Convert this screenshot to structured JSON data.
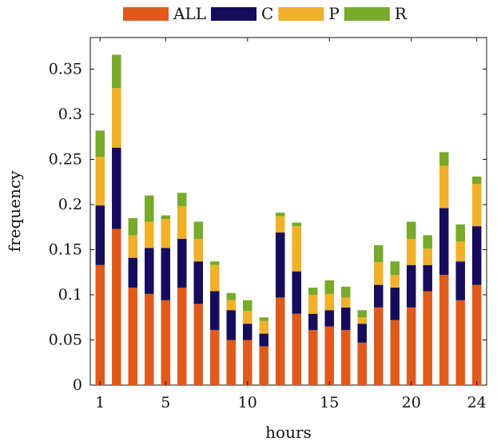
{
  "chart_data": {
    "type": "bar",
    "stacked": true,
    "xlabel": "hours",
    "ylabel": "frequency",
    "ylim": [
      0,
      0.385
    ],
    "xlim": [
      0.4,
      24.6
    ],
    "x": [
      1,
      2,
      3,
      4,
      5,
      6,
      7,
      8,
      9,
      10,
      11,
      12,
      13,
      14,
      15,
      16,
      17,
      18,
      19,
      20,
      21,
      22,
      23,
      24
    ],
    "xticks": [
      1,
      5,
      10,
      15,
      20,
      24
    ],
    "yticks": [
      0,
      0.05,
      0.1,
      0.15,
      0.2,
      0.25,
      0.3,
      0.35
    ],
    "ytick_labels": [
      "0",
      "0.05",
      "0.1",
      "0.15",
      "0.2",
      "0.25",
      "0.3",
      "0.35"
    ],
    "legend_position": "top",
    "series": [
      {
        "name": "ALL",
        "color": "#e05a1b",
        "values": [
          0.133,
          0.173,
          0.108,
          0.101,
          0.094,
          0.108,
          0.09,
          0.061,
          0.05,
          0.05,
          0.043,
          0.097,
          0.079,
          0.061,
          0.065,
          0.061,
          0.047,
          0.086,
          0.072,
          0.086,
          0.104,
          0.122,
          0.094,
          0.111
        ]
      },
      {
        "name": "C",
        "color": "#150d5c",
        "values": [
          0.066,
          0.09,
          0.033,
          0.051,
          0.058,
          0.054,
          0.047,
          0.043,
          0.033,
          0.018,
          0.014,
          0.072,
          0.047,
          0.018,
          0.018,
          0.025,
          0.021,
          0.025,
          0.036,
          0.047,
          0.029,
          0.074,
          0.043,
          0.065
        ]
      },
      {
        "name": "P",
        "color": "#f0b02a",
        "values": [
          0.054,
          0.066,
          0.025,
          0.029,
          0.032,
          0.036,
          0.025,
          0.029,
          0.011,
          0.014,
          0.014,
          0.018,
          0.05,
          0.021,
          0.018,
          0.011,
          0.007,
          0.025,
          0.014,
          0.029,
          0.018,
          0.047,
          0.022,
          0.047
        ]
      },
      {
        "name": "R",
        "color": "#78aa2b",
        "values": [
          0.029,
          0.037,
          0.019,
          0.029,
          0.004,
          0.015,
          0.019,
          0.004,
          0.008,
          0.012,
          0.004,
          0.004,
          0.004,
          0.008,
          0.015,
          0.012,
          0.008,
          0.019,
          0.015,
          0.019,
          0.015,
          0.015,
          0.019,
          0.008
        ]
      }
    ]
  }
}
